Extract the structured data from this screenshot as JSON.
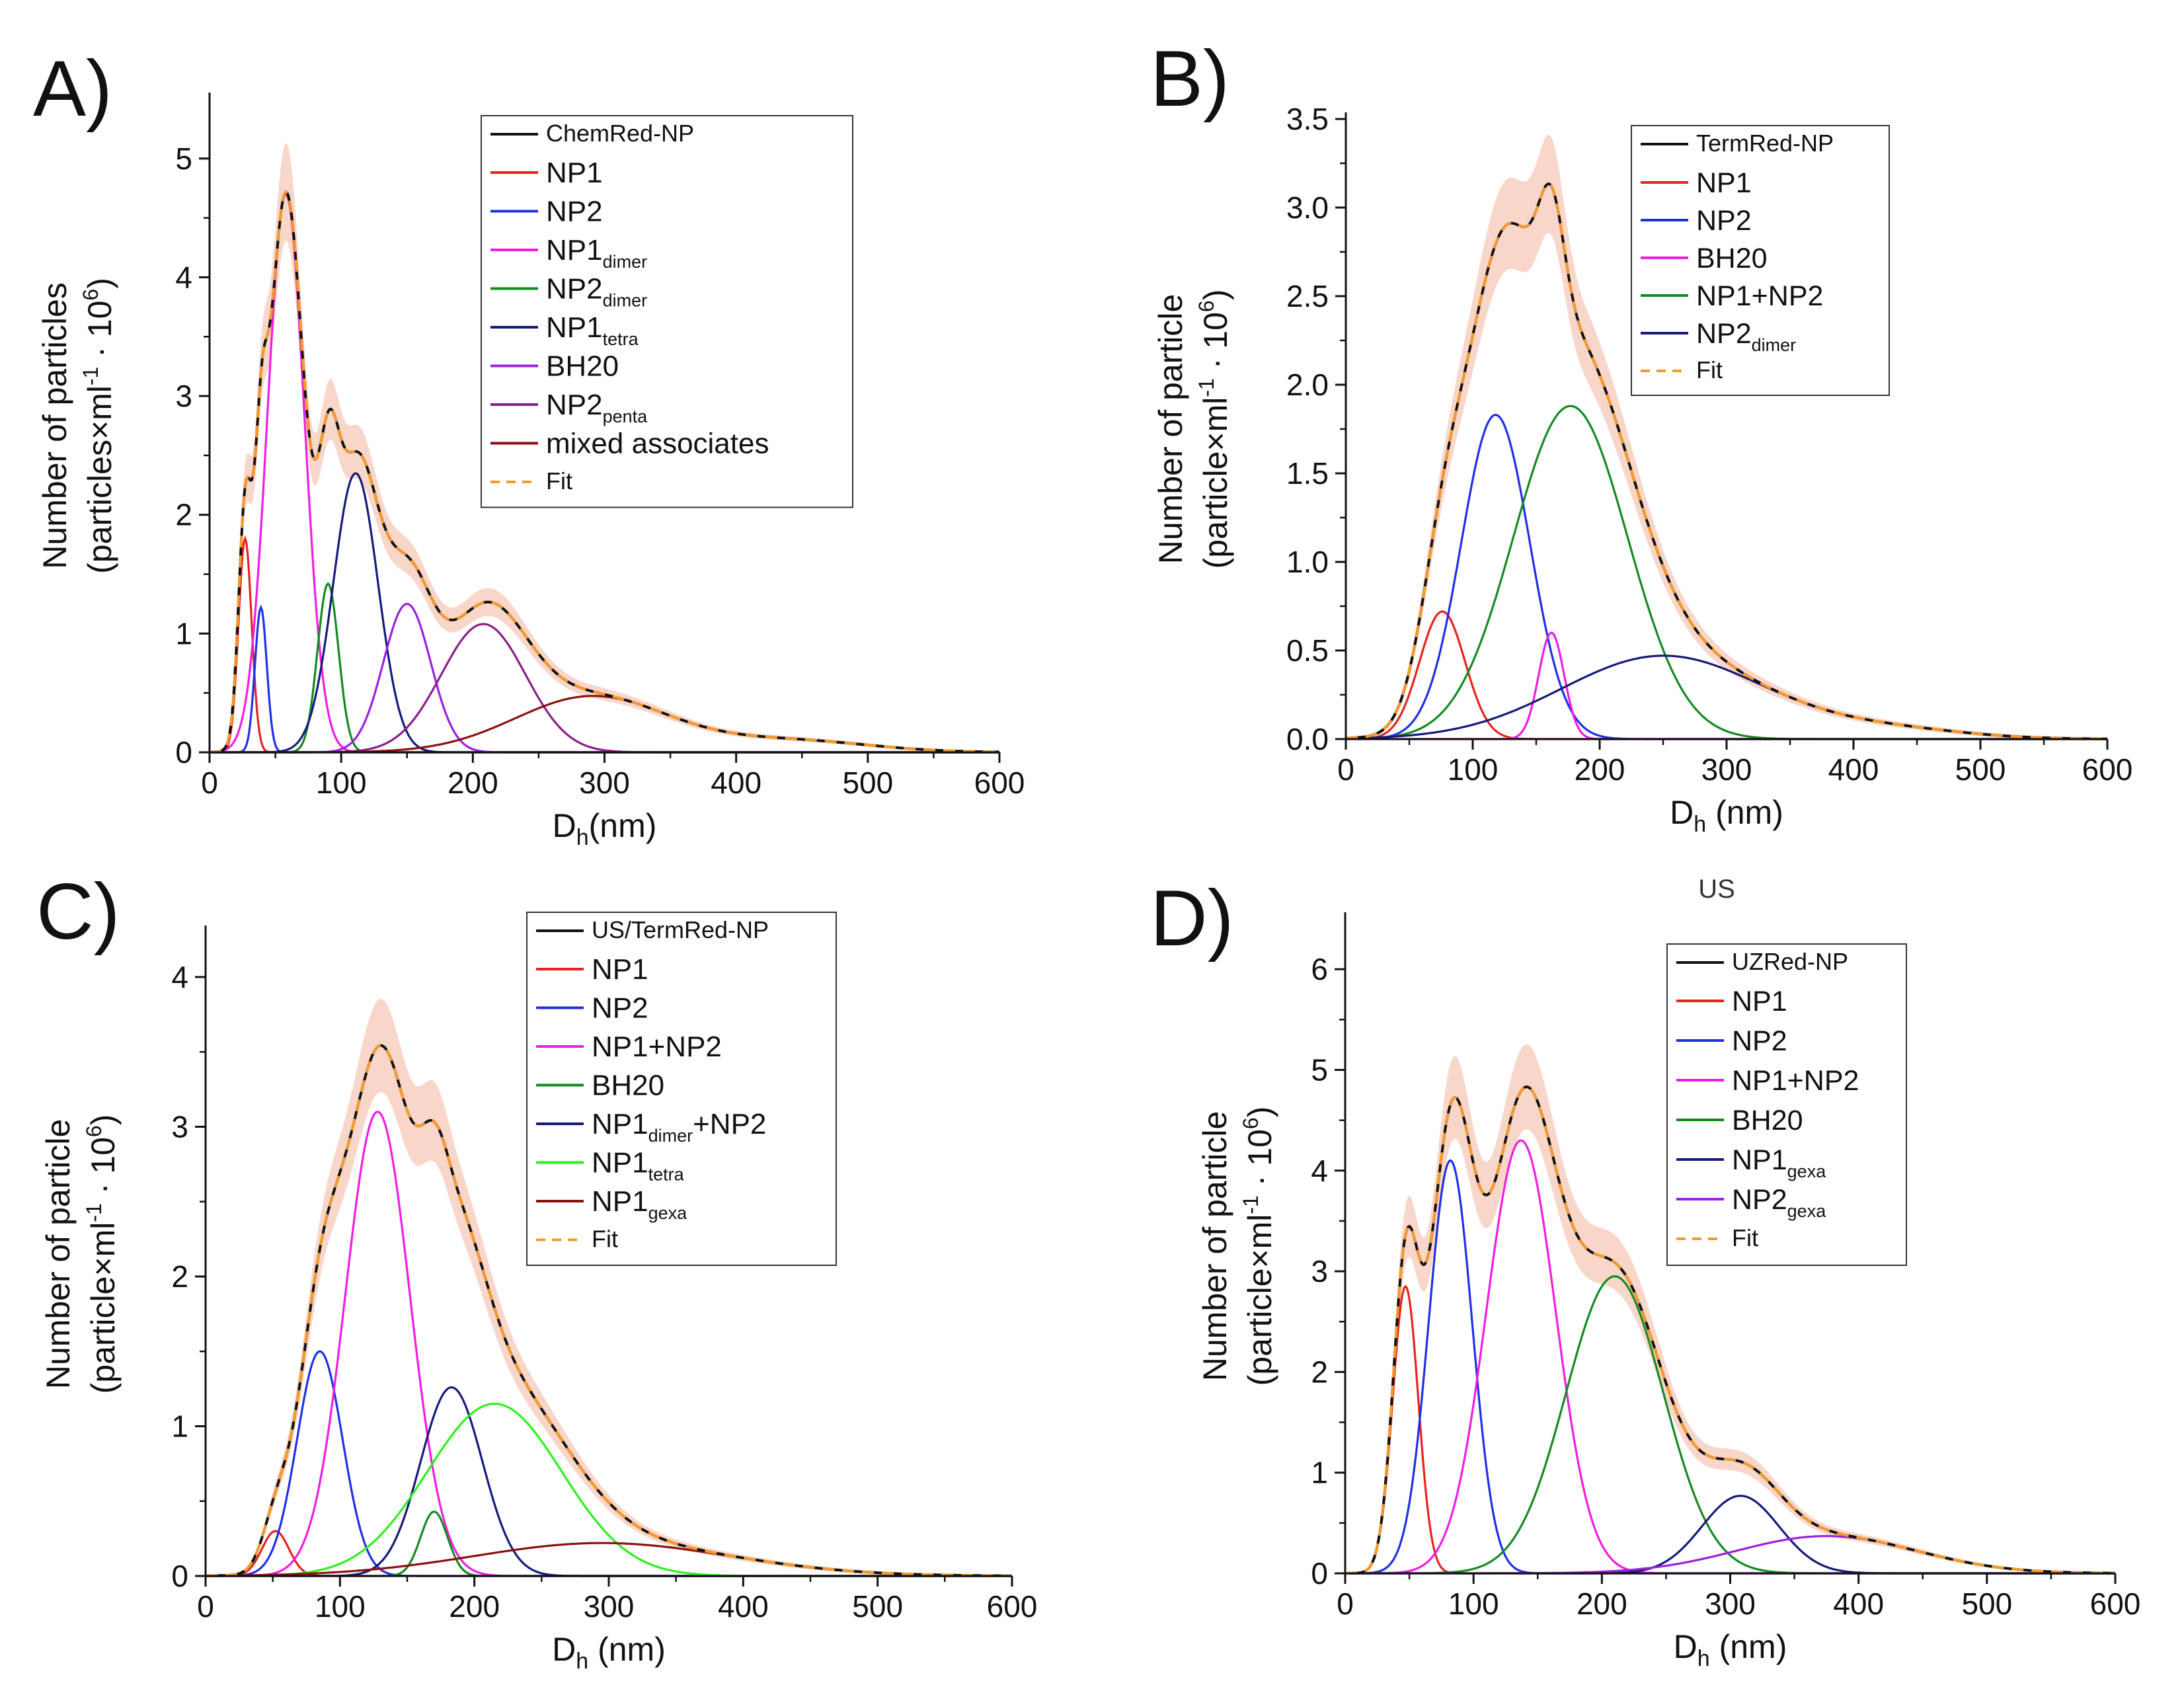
{
  "figure": {
    "colors": {
      "black": "#111111",
      "red": "#e8221f",
      "blue": "#1f2fe6",
      "magenta": "#f21ce2",
      "green": "#138a21",
      "navy": "#151a7a",
      "violet": "#9b1fe0",
      "purple": "#8a1e8a",
      "maroon": "#8b1010",
      "lime": "#2ef01f",
      "fit": "#f59a2b",
      "band": "#f7c8b8"
    }
  },
  "chart_data": [
    {
      "panel": "A)",
      "type": "line",
      "title": "",
      "xlabel": "D",
      "xlabel_sub": "h",
      "xlabel_rest": "(nm)",
      "ylabel_line1": "Number of particles",
      "ylabel_line2_pre": "(particles×ml",
      "ylabel_sup1": "-1",
      "ylabel_mid": " · 10",
      "ylabel_sup2": "6",
      "ylabel_post": ")",
      "xlim": [
        0,
        600
      ],
      "ylim": [
        0,
        5.5
      ],
      "xticks": [
        0,
        100,
        200,
        300,
        400,
        500,
        600
      ],
      "yticks": [
        0,
        1,
        2,
        3,
        4,
        5
      ],
      "ytick_labels": [
        "0",
        "1",
        "2",
        "3",
        "4",
        "5"
      ],
      "legend_position": "top-right",
      "series": [
        {
          "name": "ChemRed-NP",
          "color": "black",
          "role": "total"
        },
        {
          "name": "NP1",
          "color": "red",
          "peaks": [
            [
              1.8,
              27,
              5
            ]
          ]
        },
        {
          "name": "NP2",
          "color": "blue",
          "peaks": [
            [
              1.22,
              39,
              4.5
            ]
          ]
        },
        {
          "name": "NP1",
          "sub": "dimer",
          "color": "magenta",
          "peaks": [
            [
              4.7,
              58,
              14
            ]
          ]
        },
        {
          "name": "NP2",
          "sub": "dimer",
          "color": "green",
          "peaks": [
            [
              1.42,
              90,
              8
            ]
          ]
        },
        {
          "name": "NP1",
          "sub": "tetra",
          "color": "navy",
          "peaks": [
            [
              2.35,
              111,
              17
            ]
          ]
        },
        {
          "name": "BH20",
          "color": "violet",
          "peaks": [
            [
              1.25,
              150,
              18
            ]
          ]
        },
        {
          "name": "NP2",
          "sub": "penta",
          "color": "purple",
          "peaks": [
            [
              1.08,
              208,
              32
            ]
          ]
        },
        {
          "name": "mixed associates",
          "color": "maroon",
          "peaks": [
            [
              0.47,
              290,
              58
            ],
            [
              0.1,
              440,
              60
            ]
          ]
        },
        {
          "name": "Fit",
          "color": "fit",
          "role": "fit"
        }
      ]
    },
    {
      "panel": "B)",
      "type": "line",
      "title": "",
      "xlabel": "D",
      "xlabel_sub": "h",
      "xlabel_rest": " (nm)",
      "ylabel_line1": "Number of particle",
      "ylabel_line2_pre": "(particle×ml",
      "ylabel_sup1": "-1",
      "ylabel_mid": " · 10",
      "ylabel_sup2": "6",
      "ylabel_post": ")",
      "xlim": [
        0,
        600
      ],
      "ylim": [
        0,
        3.5
      ],
      "xticks": [
        0,
        100,
        200,
        300,
        400,
        500,
        600
      ],
      "yticks": [
        0,
        0.5,
        1,
        1.5,
        2,
        2.5,
        3,
        3.5
      ],
      "ytick_labels": [
        "0.0",
        "0.5",
        "1.0",
        "1.5",
        "2.0",
        "2.5",
        "3.0",
        "3.5"
      ],
      "legend_position": "top-right",
      "series": [
        {
          "name": "TermRed-NP",
          "color": "black",
          "role": "total"
        },
        {
          "name": "NP1",
          "color": "red",
          "peaks": [
            [
              0.72,
              76,
              18
            ]
          ]
        },
        {
          "name": "NP2",
          "color": "blue",
          "peaks": [
            [
              1.83,
              118,
              27
            ]
          ]
        },
        {
          "name": "BH20",
          "color": "magenta",
          "peaks": [
            [
              0.6,
              162,
              10
            ]
          ]
        },
        {
          "name": "NP1+NP2",
          "color": "green",
          "peaks": [
            [
              1.88,
              177,
              45
            ]
          ]
        },
        {
          "name": "NP2",
          "sub": "dimer",
          "color": "navy",
          "peaks": [
            [
              0.47,
              250,
              80
            ],
            [
              0.05,
              430,
              60
            ]
          ]
        },
        {
          "name": "Fit",
          "color": "fit",
          "role": "fit"
        }
      ]
    },
    {
      "panel": "C)",
      "type": "line",
      "title": "",
      "xlabel": "D",
      "xlabel_sub": "h",
      "xlabel_rest": " (nm)",
      "ylabel_line1": "Number of particle",
      "ylabel_line2_pre": "(particle×ml",
      "ylabel_sup1": "-1",
      "ylabel_mid": " · 10",
      "ylabel_sup2": "6",
      "ylabel_post": ")",
      "xlim": [
        0,
        600
      ],
      "ylim": [
        0,
        4.3
      ],
      "xticks": [
        0,
        100,
        200,
        300,
        400,
        500,
        600
      ],
      "yticks": [
        0,
        1,
        2,
        3,
        4
      ],
      "ytick_labels": [
        "0",
        "1",
        "2",
        "3",
        "4"
      ],
      "legend_position": "top-right",
      "series": [
        {
          "name": "US/TermRed-NP",
          "color": "black",
          "role": "total"
        },
        {
          "name": "NP1",
          "color": "red",
          "peaks": [
            [
              0.3,
              52,
              10
            ]
          ]
        },
        {
          "name": "NP2",
          "color": "blue",
          "peaks": [
            [
              1.5,
              85,
              17
            ]
          ]
        },
        {
          "name": "NP1+NP2",
          "color": "magenta",
          "peaks": [
            [
              3.1,
              128,
              24
            ]
          ]
        },
        {
          "name": "BH20",
          "color": "green",
          "peaks": [
            [
              0.43,
              170,
              10
            ]
          ]
        },
        {
          "name": "NP1",
          "sub": "dimer",
          "suffix": "+NP2",
          "color": "navy",
          "peaks": [
            [
              1.26,
              183,
              23
            ]
          ]
        },
        {
          "name": "NP1",
          "sub": "tetra",
          "color": "lime",
          "peaks": [
            [
              1.15,
              215,
              50
            ]
          ]
        },
        {
          "name": "NP1",
          "sub": "gexa",
          "color": "maroon",
          "peaks": [
            [
              0.22,
              295,
              95
            ]
          ]
        },
        {
          "name": "Fit",
          "color": "fit",
          "role": "fit"
        }
      ]
    },
    {
      "panel": "D)",
      "type": "line",
      "title": "US",
      "xlabel": "D",
      "xlabel_sub": "h",
      "xlabel_rest": " (nm)",
      "ylabel_line1": "Number of particle",
      "ylabel_line2_pre": "(particle×ml",
      "ylabel_sup1": "-1",
      "ylabel_mid": " · 10",
      "ylabel_sup2": "6",
      "ylabel_post": ")",
      "xlim": [
        0,
        600
      ],
      "ylim": [
        0,
        6.5
      ],
      "xticks": [
        0,
        100,
        200,
        300,
        400,
        500,
        600
      ],
      "yticks": [
        0,
        1,
        2,
        3,
        4,
        5,
        6
      ],
      "ytick_labels": [
        "0",
        "1",
        "2",
        "3",
        "4",
        "5",
        "6"
      ],
      "legend_position": "top-right",
      "series": [
        {
          "name": "UZRed-NP",
          "color": "black",
          "role": "total"
        },
        {
          "name": "NP1",
          "color": "red",
          "peaks": [
            [
              2.85,
              47,
              10
            ]
          ]
        },
        {
          "name": "NP2",
          "color": "blue",
          "peaks": [
            [
              4.1,
              82,
              17
            ]
          ]
        },
        {
          "name": "NP1+NP2",
          "color": "magenta",
          "peaks": [
            [
              4.3,
              137,
              27
            ]
          ]
        },
        {
          "name": "BH20",
          "color": "green",
          "peaks": [
            [
              2.95,
              210,
              38
            ]
          ]
        },
        {
          "name": "NP1",
          "sub": "gexa",
          "color": "navy",
          "peaks": [
            [
              0.77,
              308,
              30
            ]
          ]
        },
        {
          "name": "NP2",
          "sub": "gexa",
          "color": "violet",
          "peaks": [
            [
              0.37,
              375,
              70
            ]
          ]
        },
        {
          "name": "Fit",
          "color": "fit",
          "role": "fit"
        }
      ]
    }
  ]
}
